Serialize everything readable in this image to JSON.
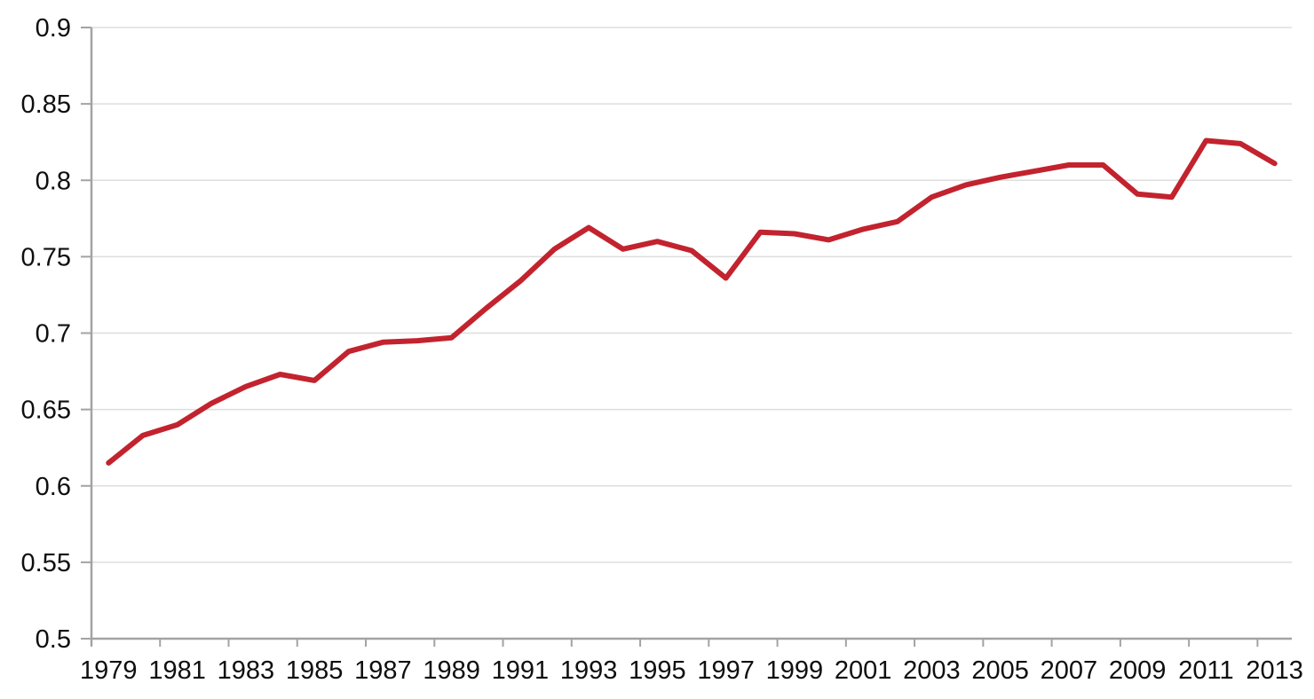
{
  "chart_data": {
    "type": "line",
    "title": "",
    "xlabel": "",
    "ylabel": "",
    "x": [
      1979,
      1980,
      1981,
      1982,
      1983,
      1984,
      1985,
      1986,
      1987,
      1988,
      1989,
      1990,
      1991,
      1992,
      1993,
      1994,
      1995,
      1996,
      1997,
      1998,
      1999,
      2000,
      2001,
      2002,
      2003,
      2004,
      2005,
      2006,
      2007,
      2008,
      2009,
      2010,
      2011,
      2012,
      2013
    ],
    "series": [
      {
        "name": "series-1",
        "color": "#C2232E",
        "values": [
          0.615,
          0.633,
          0.64,
          0.654,
          0.665,
          0.673,
          0.669,
          0.688,
          0.694,
          0.695,
          0.697,
          0.716,
          0.734,
          0.755,
          0.769,
          0.755,
          0.76,
          0.754,
          0.736,
          0.766,
          0.765,
          0.761,
          0.768,
          0.773,
          0.789,
          0.797,
          0.802,
          0.806,
          0.81,
          0.81,
          0.791,
          0.789,
          0.826,
          0.824,
          0.811
        ]
      }
    ],
    "ylim": [
      0.5,
      0.9
    ],
    "ytick_values": [
      0.5,
      0.55,
      0.6,
      0.65,
      0.7,
      0.75,
      0.8,
      0.85,
      0.9
    ],
    "ytick_labels": [
      "0.5",
      "0.55",
      "0.6",
      "0.65",
      "0.7",
      "0.75",
      "0.8",
      "0.85",
      "0.9"
    ],
    "xtick_label_years": [
      1979,
      1981,
      1983,
      1985,
      1987,
      1989,
      1991,
      1993,
      1995,
      1997,
      1999,
      2001,
      2003,
      2005,
      2007,
      2009,
      2011,
      2013
    ],
    "xtick_label_strings": [
      "1979",
      "1981",
      "1983",
      "1985",
      "1987",
      "1989",
      "1991",
      "1993",
      "1995",
      "1997",
      "1999",
      "2001",
      "2003",
      "2005",
      "2007",
      "2009",
      "2011",
      "2013"
    ],
    "grid": "horizontal",
    "legend_position": "none",
    "colors": {
      "line": "#C2232E",
      "axis": "#A3A3A3",
      "gridline": "#DEDEDE",
      "tick_text": "#0F0F0F",
      "background": "#FFFFFF"
    }
  }
}
